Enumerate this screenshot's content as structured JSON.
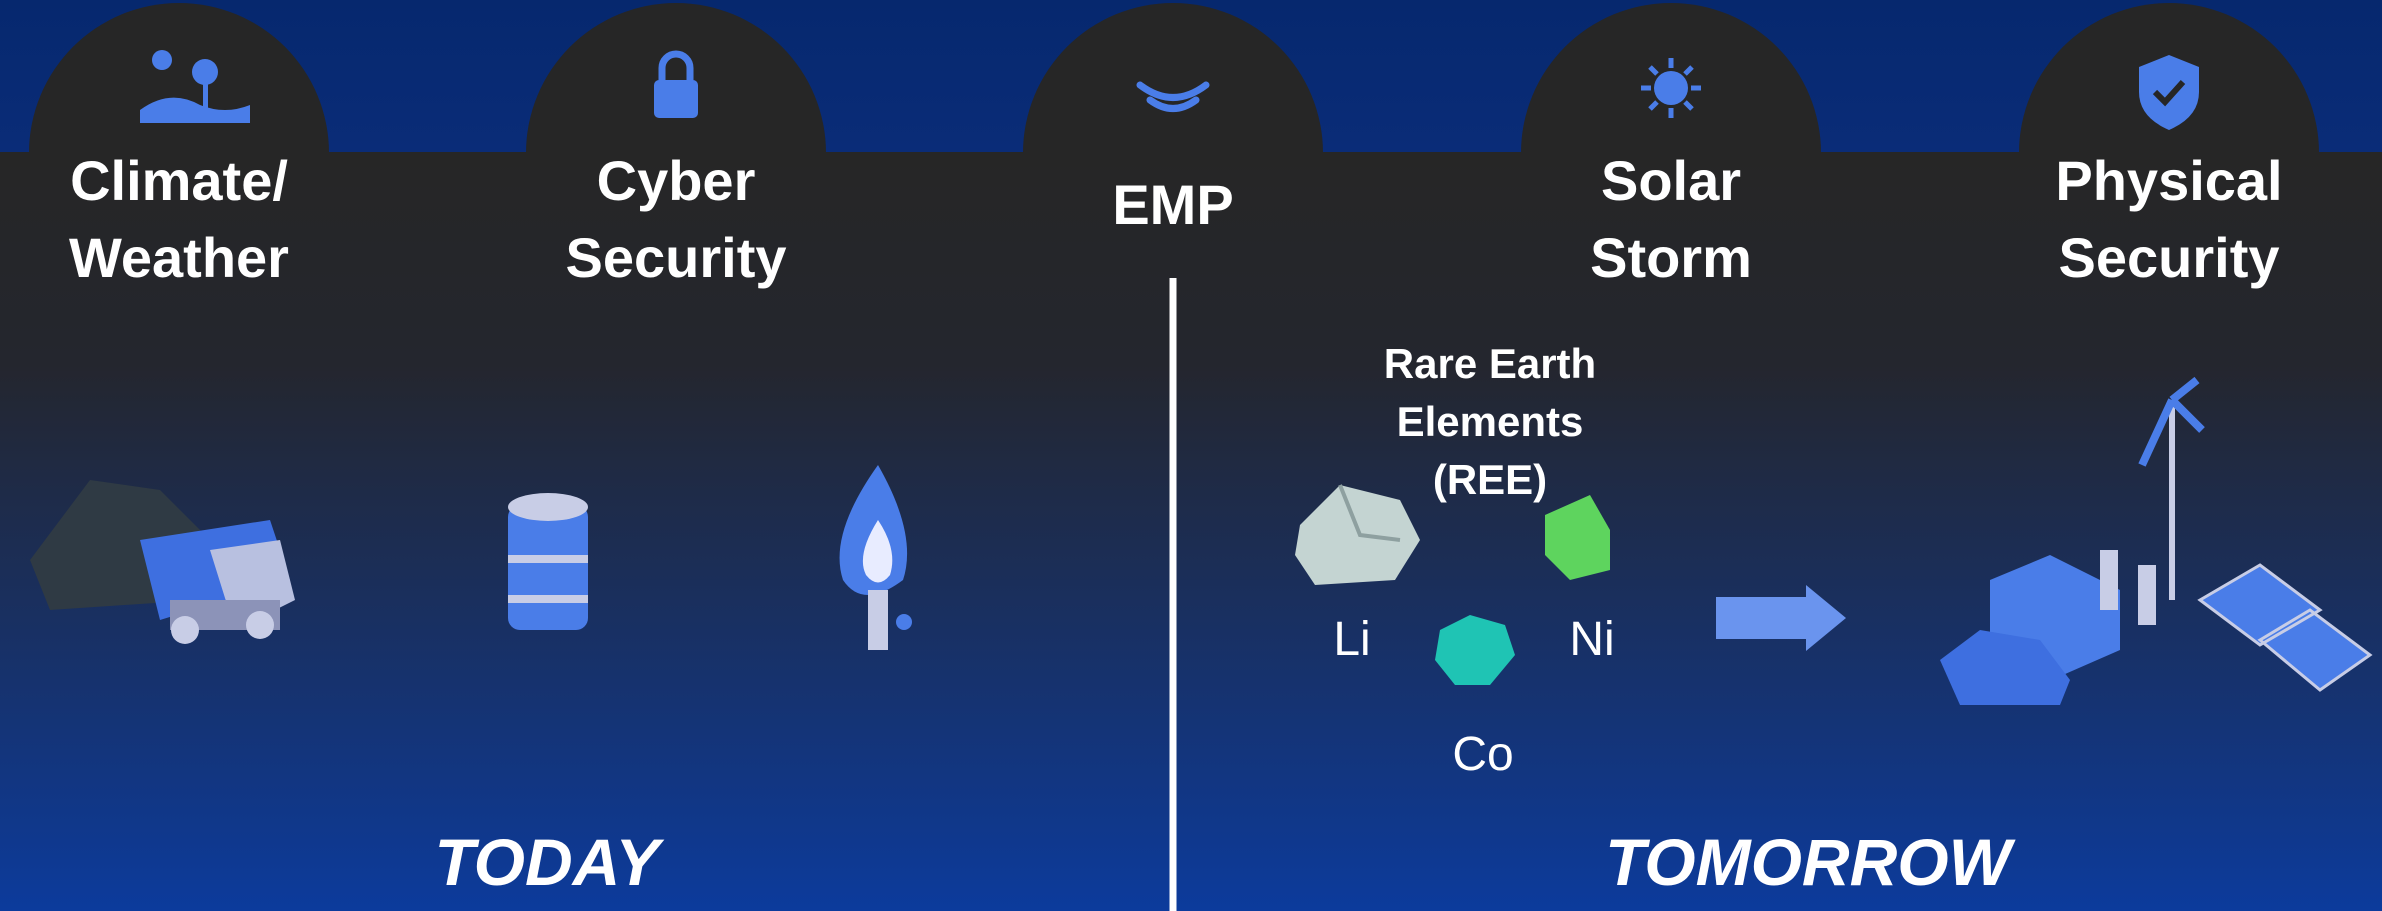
{
  "threats": [
    [
      "Climate/",
      "Weather"
    ],
    [
      "Cyber",
      "Security"
    ],
    [
      "EMP"
    ],
    [
      "Solar",
      "Storm"
    ],
    [
      "Physical",
      "Security"
    ]
  ],
  "sections": [
    "TODAY",
    "TOMORROW"
  ],
  "ree": {
    "title": [
      "Rare Earth",
      "Elements",
      "(REE)"
    ],
    "elements": [
      "Li",
      "Ni",
      "Co"
    ]
  }
}
